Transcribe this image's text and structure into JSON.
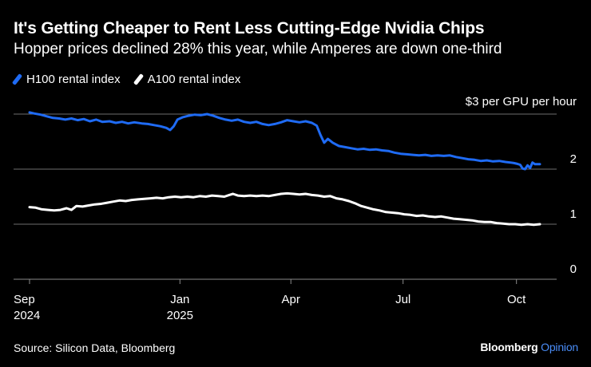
{
  "title": "It's Getting Cheaper to Rent Less Cutting-Edge Nvidia Chips",
  "subtitle": "Hopper prices declined 28% this year, while Amperes are down one-third",
  "source": "Source: Silicon Data, Bloomberg",
  "brand": {
    "name": "Bloomberg",
    "sub": "Opinion"
  },
  "colors": {
    "background": "#000000",
    "h100": "#1f6bf4",
    "a100": "#ffffff",
    "grid": "#6e6e6e",
    "brand_sub": "#4a8df8"
  },
  "chart_data": {
    "type": "line",
    "title": "It's Getting Cheaper to Rent Less Cutting-Edge Nvidia Chips",
    "xlabel": "",
    "ylabel": "$ per GPU per hour",
    "y_unit_label": "$3 per GPU per hour",
    "ylim": [
      0,
      3
    ],
    "yticks": [
      0,
      1,
      2,
      3
    ],
    "ytick_labels": [
      "0",
      "1",
      "2",
      ""
    ],
    "xlim": [
      "2024-09-01",
      "2025-10-20"
    ],
    "xticks": [
      {
        "date": "2024-09-01",
        "line1": "Sep",
        "line2": "2024"
      },
      {
        "date": "2025-01-01",
        "line1": "Jan",
        "line2": "2025"
      },
      {
        "date": "2025-04-01",
        "line1": "Apr",
        "line2": ""
      },
      {
        "date": "2025-07-01",
        "line1": "Jul",
        "line2": ""
      },
      {
        "date": "2025-10-01",
        "line1": "Oct",
        "line2": ""
      }
    ],
    "legend_position": "top-left",
    "grid": true,
    "series": [
      {
        "name": "H100 rental index",
        "color": "#1f6bf4",
        "points": [
          [
            "2024-09-01",
            3.03
          ],
          [
            "2024-09-05",
            3.01
          ],
          [
            "2024-09-10",
            2.99
          ],
          [
            "2024-09-15",
            2.96
          ],
          [
            "2024-09-20",
            2.93
          ],
          [
            "2024-09-25",
            2.92
          ],
          [
            "2024-09-30",
            2.9
          ],
          [
            "2024-10-05",
            2.92
          ],
          [
            "2024-10-10",
            2.89
          ],
          [
            "2024-10-15",
            2.91
          ],
          [
            "2024-10-20",
            2.87
          ],
          [
            "2024-10-25",
            2.9
          ],
          [
            "2024-10-30",
            2.86
          ],
          [
            "2024-11-05",
            2.87
          ],
          [
            "2024-11-10",
            2.84
          ],
          [
            "2024-11-15",
            2.86
          ],
          [
            "2024-11-20",
            2.83
          ],
          [
            "2024-11-25",
            2.85
          ],
          [
            "2024-12-01",
            2.83
          ],
          [
            "2024-12-06",
            2.82
          ],
          [
            "2024-12-11",
            2.8
          ],
          [
            "2024-12-16",
            2.78
          ],
          [
            "2024-12-21",
            2.75
          ],
          [
            "2024-12-24",
            2.71
          ],
          [
            "2024-12-27",
            2.78
          ],
          [
            "2024-12-30",
            2.9
          ],
          [
            "2025-01-03",
            2.94
          ],
          [
            "2025-01-08",
            2.97
          ],
          [
            "2025-01-13",
            2.99
          ],
          [
            "2025-01-18",
            2.98
          ],
          [
            "2025-01-23",
            3.0
          ],
          [
            "2025-01-28",
            2.97
          ],
          [
            "2025-02-02",
            2.93
          ],
          [
            "2025-02-07",
            2.9
          ],
          [
            "2025-02-12",
            2.88
          ],
          [
            "2025-02-17",
            2.9
          ],
          [
            "2025-02-22",
            2.86
          ],
          [
            "2025-02-27",
            2.84
          ],
          [
            "2025-03-04",
            2.86
          ],
          [
            "2025-03-09",
            2.82
          ],
          [
            "2025-03-14",
            2.8
          ],
          [
            "2025-03-19",
            2.82
          ],
          [
            "2025-03-24",
            2.85
          ],
          [
            "2025-03-29",
            2.89
          ],
          [
            "2025-04-03",
            2.87
          ],
          [
            "2025-04-08",
            2.85
          ],
          [
            "2025-04-13",
            2.87
          ],
          [
            "2025-04-18",
            2.84
          ],
          [
            "2025-04-22",
            2.79
          ],
          [
            "2025-04-25",
            2.62
          ],
          [
            "2025-04-28",
            2.48
          ],
          [
            "2025-05-01",
            2.55
          ],
          [
            "2025-05-05",
            2.48
          ],
          [
            "2025-05-10",
            2.42
          ],
          [
            "2025-05-15",
            2.4
          ],
          [
            "2025-05-20",
            2.38
          ],
          [
            "2025-05-25",
            2.36
          ],
          [
            "2025-05-30",
            2.37
          ],
          [
            "2025-06-04",
            2.35
          ],
          [
            "2025-06-09",
            2.36
          ],
          [
            "2025-06-14",
            2.34
          ],
          [
            "2025-06-19",
            2.33
          ],
          [
            "2025-06-24",
            2.3
          ],
          [
            "2025-06-29",
            2.28
          ],
          [
            "2025-07-04",
            2.27
          ],
          [
            "2025-07-09",
            2.26
          ],
          [
            "2025-07-14",
            2.25
          ],
          [
            "2025-07-19",
            2.26
          ],
          [
            "2025-07-24",
            2.24
          ],
          [
            "2025-07-29",
            2.25
          ],
          [
            "2025-08-03",
            2.24
          ],
          [
            "2025-08-08",
            2.25
          ],
          [
            "2025-08-13",
            2.22
          ],
          [
            "2025-08-18",
            2.2
          ],
          [
            "2025-08-23",
            2.18
          ],
          [
            "2025-08-28",
            2.17
          ],
          [
            "2025-09-02",
            2.15
          ],
          [
            "2025-09-07",
            2.16
          ],
          [
            "2025-09-12",
            2.14
          ],
          [
            "2025-09-17",
            2.15
          ],
          [
            "2025-09-22",
            2.13
          ],
          [
            "2025-09-26",
            2.12
          ],
          [
            "2025-09-29",
            2.11
          ],
          [
            "2025-10-01",
            2.1
          ],
          [
            "2025-10-04",
            2.08
          ],
          [
            "2025-10-06",
            2.01
          ],
          [
            "2025-10-08",
            2.0
          ],
          [
            "2025-10-10",
            2.07
          ],
          [
            "2025-10-12",
            2.02
          ],
          [
            "2025-10-14",
            2.12
          ],
          [
            "2025-10-16",
            2.09
          ],
          [
            "2025-10-20",
            2.09
          ]
        ]
      },
      {
        "name": "A100 rental index",
        "color": "#ffffff",
        "points": [
          [
            "2024-09-01",
            1.31
          ],
          [
            "2024-09-06",
            1.3
          ],
          [
            "2024-09-11",
            1.27
          ],
          [
            "2024-09-16",
            1.26
          ],
          [
            "2024-09-21",
            1.25
          ],
          [
            "2024-09-26",
            1.26
          ],
          [
            "2024-10-01",
            1.29
          ],
          [
            "2024-10-05",
            1.26
          ],
          [
            "2024-10-09",
            1.33
          ],
          [
            "2024-10-14",
            1.32
          ],
          [
            "2024-10-19",
            1.34
          ],
          [
            "2024-10-24",
            1.36
          ],
          [
            "2024-10-29",
            1.37
          ],
          [
            "2024-11-03",
            1.39
          ],
          [
            "2024-11-08",
            1.41
          ],
          [
            "2024-11-13",
            1.43
          ],
          [
            "2024-11-18",
            1.42
          ],
          [
            "2024-11-23",
            1.44
          ],
          [
            "2024-11-28",
            1.45
          ],
          [
            "2024-12-03",
            1.46
          ],
          [
            "2024-12-08",
            1.47
          ],
          [
            "2024-12-13",
            1.48
          ],
          [
            "2024-12-18",
            1.47
          ],
          [
            "2024-12-23",
            1.49
          ],
          [
            "2024-12-28",
            1.5
          ],
          [
            "2025-01-02",
            1.49
          ],
          [
            "2025-01-07",
            1.5
          ],
          [
            "2025-01-12",
            1.49
          ],
          [
            "2025-01-17",
            1.51
          ],
          [
            "2025-01-22",
            1.5
          ],
          [
            "2025-01-27",
            1.52
          ],
          [
            "2025-02-01",
            1.51
          ],
          [
            "2025-02-06",
            1.5
          ],
          [
            "2025-02-10",
            1.53
          ],
          [
            "2025-02-13",
            1.55
          ],
          [
            "2025-02-17",
            1.52
          ],
          [
            "2025-02-22",
            1.51
          ],
          [
            "2025-02-27",
            1.52
          ],
          [
            "2025-03-04",
            1.51
          ],
          [
            "2025-03-09",
            1.52
          ],
          [
            "2025-03-14",
            1.51
          ],
          [
            "2025-03-19",
            1.53
          ],
          [
            "2025-03-24",
            1.55
          ],
          [
            "2025-03-29",
            1.56
          ],
          [
            "2025-04-03",
            1.55
          ],
          [
            "2025-04-08",
            1.54
          ],
          [
            "2025-04-13",
            1.55
          ],
          [
            "2025-04-18",
            1.53
          ],
          [
            "2025-04-23",
            1.52
          ],
          [
            "2025-04-28",
            1.5
          ],
          [
            "2025-05-03",
            1.51
          ],
          [
            "2025-05-08",
            1.47
          ],
          [
            "2025-05-13",
            1.45
          ],
          [
            "2025-05-18",
            1.42
          ],
          [
            "2025-05-23",
            1.38
          ],
          [
            "2025-05-28",
            1.33
          ],
          [
            "2025-06-02",
            1.3
          ],
          [
            "2025-06-07",
            1.27
          ],
          [
            "2025-06-12",
            1.25
          ],
          [
            "2025-06-17",
            1.22
          ],
          [
            "2025-06-22",
            1.21
          ],
          [
            "2025-06-27",
            1.2
          ],
          [
            "2025-07-02",
            1.18
          ],
          [
            "2025-07-07",
            1.17
          ],
          [
            "2025-07-12",
            1.15
          ],
          [
            "2025-07-17",
            1.16
          ],
          [
            "2025-07-22",
            1.14
          ],
          [
            "2025-07-27",
            1.13
          ],
          [
            "2025-08-01",
            1.14
          ],
          [
            "2025-08-06",
            1.12
          ],
          [
            "2025-08-11",
            1.1
          ],
          [
            "2025-08-16",
            1.09
          ],
          [
            "2025-08-21",
            1.08
          ],
          [
            "2025-08-26",
            1.07
          ],
          [
            "2025-08-31",
            1.05
          ],
          [
            "2025-09-05",
            1.04
          ],
          [
            "2025-09-10",
            1.04
          ],
          [
            "2025-09-15",
            1.02
          ],
          [
            "2025-09-20",
            1.01
          ],
          [
            "2025-09-25",
            1.0
          ],
          [
            "2025-09-30",
            1.0
          ],
          [
            "2025-10-05",
            0.99
          ],
          [
            "2025-10-10",
            1.0
          ],
          [
            "2025-10-15",
            0.99
          ],
          [
            "2025-10-20",
            1.0
          ]
        ]
      }
    ]
  }
}
